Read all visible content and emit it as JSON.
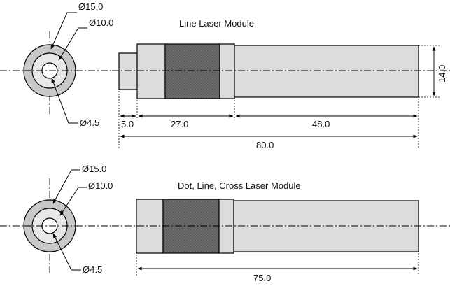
{
  "top": {
    "title": "Line Laser Module",
    "dia_outer": "Ø15.0",
    "dia_mid": "Ø10.0",
    "dia_inner": "Ø4.5",
    "dim_a": "5.0",
    "dim_b": "27.0",
    "dim_c": "48.0",
    "dim_total": "80.0",
    "dim_height": "14.0"
  },
  "bottom": {
    "title": "Dot, Line, Cross Laser Module",
    "dia_outer": "Ø15.0",
    "dia_mid": "Ø10.0",
    "dia_inner": "Ø4.5",
    "dim_total": "75.0"
  }
}
